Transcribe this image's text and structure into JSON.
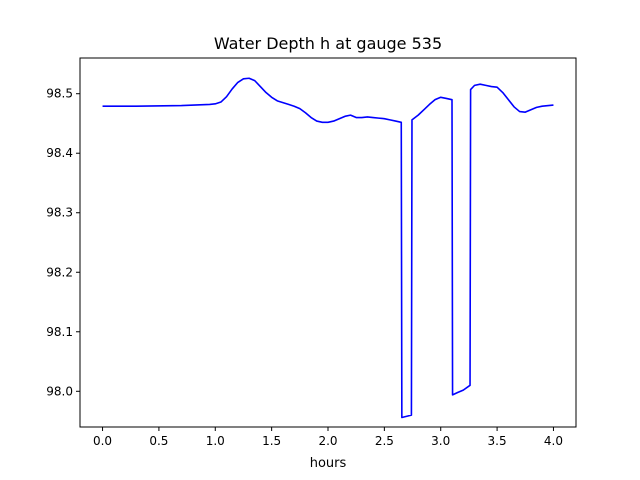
{
  "chart_data": {
    "type": "line",
    "title": "Water Depth h at gauge 535",
    "xlabel": "hours",
    "ylabel": "",
    "xlim": [
      -0.2,
      4.2
    ],
    "ylim": [
      97.94,
      98.56
    ],
    "xticks": [
      0.0,
      0.5,
      1.0,
      1.5,
      2.0,
      2.5,
      3.0,
      3.5,
      4.0
    ],
    "xtick_labels": [
      "0.0",
      "0.5",
      "1.0",
      "1.5",
      "2.0",
      "2.5",
      "3.0",
      "3.5",
      "4.0"
    ],
    "yticks": [
      98.0,
      98.1,
      98.2,
      98.3,
      98.4,
      98.5
    ],
    "ytick_labels": [
      "98.0",
      "98.1",
      "98.2",
      "98.3",
      "98.4",
      "98.5"
    ],
    "grid": false,
    "series": [
      {
        "color": "#0000ff",
        "x": [
          0.0,
          0.3,
          0.7,
          0.95,
          1.0,
          1.05,
          1.1,
          1.15,
          1.2,
          1.25,
          1.3,
          1.35,
          1.4,
          1.45,
          1.5,
          1.55,
          1.6,
          1.65,
          1.7,
          1.75,
          1.8,
          1.85,
          1.9,
          1.95,
          2.0,
          2.05,
          2.1,
          2.15,
          2.2,
          2.25,
          2.3,
          2.35,
          2.4,
          2.45,
          2.5,
          2.55,
          2.6,
          2.65,
          2.655,
          2.74,
          2.745,
          2.8,
          2.85,
          2.9,
          2.95,
          3.0,
          3.05,
          3.1,
          3.105,
          3.15,
          3.2,
          3.26,
          3.265,
          3.3,
          3.35,
          3.4,
          3.45,
          3.5,
          3.55,
          3.6,
          3.65,
          3.7,
          3.75,
          3.8,
          3.85,
          3.9,
          4.0
        ],
        "y": [
          98.479,
          98.479,
          98.48,
          98.482,
          98.483,
          98.486,
          98.495,
          98.508,
          98.519,
          98.525,
          98.526,
          98.522,
          98.512,
          98.502,
          98.494,
          98.488,
          98.485,
          98.482,
          98.479,
          98.475,
          98.468,
          98.46,
          98.454,
          98.452,
          98.452,
          98.454,
          98.458,
          98.462,
          98.464,
          98.46,
          98.46,
          98.461,
          98.46,
          98.459,
          98.458,
          98.456,
          98.454,
          98.452,
          97.956,
          97.96,
          98.456,
          98.464,
          98.473,
          98.482,
          98.49,
          98.494,
          98.492,
          98.49,
          97.994,
          97.998,
          98.002,
          98.01,
          98.507,
          98.514,
          98.516,
          98.514,
          98.512,
          98.511,
          98.502,
          98.49,
          98.478,
          98.47,
          98.469,
          98.473,
          98.477,
          98.479,
          98.481
        ]
      }
    ]
  }
}
